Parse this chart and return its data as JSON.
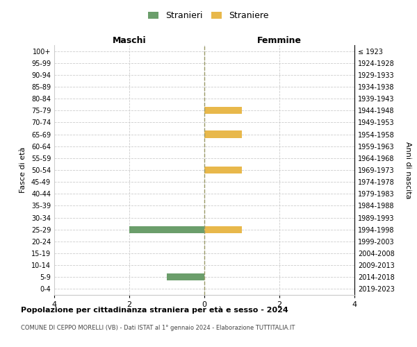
{
  "age_groups": [
    "100+",
    "95-99",
    "90-94",
    "85-89",
    "80-84",
    "75-79",
    "70-74",
    "65-69",
    "60-64",
    "55-59",
    "50-54",
    "45-49",
    "40-44",
    "35-39",
    "30-34",
    "25-29",
    "20-24",
    "15-19",
    "10-14",
    "5-9",
    "0-4"
  ],
  "birth_years": [
    "≤ 1923",
    "1924-1928",
    "1929-1933",
    "1934-1938",
    "1939-1943",
    "1944-1948",
    "1949-1953",
    "1954-1958",
    "1959-1963",
    "1964-1968",
    "1969-1973",
    "1974-1978",
    "1979-1983",
    "1984-1988",
    "1989-1993",
    "1994-1998",
    "1999-2003",
    "2004-2008",
    "2009-2013",
    "2014-2018",
    "2019-2023"
  ],
  "males": [
    0,
    0,
    0,
    0,
    0,
    0,
    0,
    0,
    0,
    0,
    0,
    0,
    0,
    0,
    0,
    -2,
    0,
    0,
    0,
    -1,
    0
  ],
  "females": [
    0,
    0,
    0,
    0,
    0,
    1,
    0,
    1,
    0,
    0,
    1,
    0,
    0,
    0,
    0,
    1,
    0,
    0,
    0,
    0,
    0
  ],
  "male_color": "#6b9e6b",
  "female_color": "#e8b84b",
  "xlim": [
    -4,
    4
  ],
  "xticks": [
    -4,
    -2,
    0,
    2,
    4
  ],
  "xlabel_left": "Maschi",
  "xlabel_right": "Femmine",
  "ylabel_left": "Fasce di età",
  "ylabel_right": "Anni di nascita",
  "legend_male": "Stranieri",
  "legend_female": "Straniere",
  "title": "Popolazione per cittadinanza straniera per età e sesso - 2024",
  "subtitle": "COMUNE DI CEPPO MORELLI (VB) - Dati ISTAT al 1° gennaio 2024 - Elaborazione TUTTITALIA.IT",
  "grid_color": "#cccccc",
  "grid_style": "--",
  "center_line_color": "#999966",
  "background_color": "#ffffff"
}
